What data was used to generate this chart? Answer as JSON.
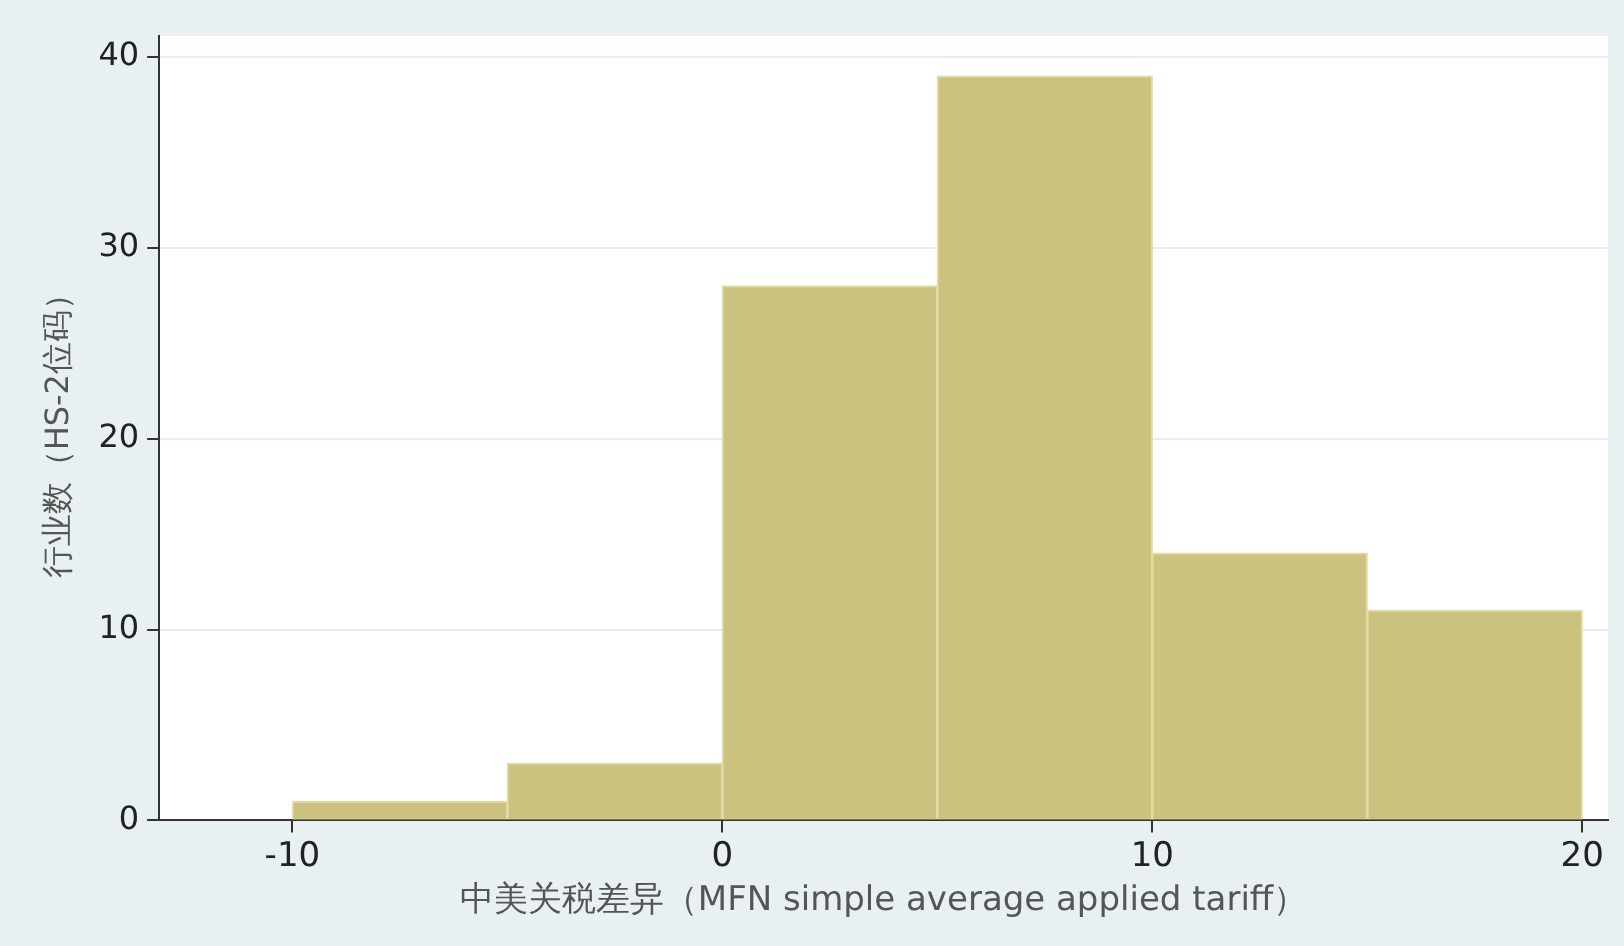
{
  "chart_data": {
    "type": "histogram",
    "xlabel": "中美关税差异（MFN simple average applied tariff）",
    "ylabel": "行业数（HS-2位码）",
    "bins": [
      -10,
      -5,
      0,
      5,
      10,
      15,
      20
    ],
    "values": [
      1,
      3,
      28,
      39,
      14,
      11
    ],
    "color": "#cbc27f",
    "xlim": [
      -13.1,
      20.6
    ],
    "xticks": [
      -10,
      0,
      10,
      20
    ],
    "ylim": [
      0,
      41.1
    ],
    "yticks": [
      0,
      10,
      20,
      30,
      40
    ],
    "grid": "y",
    "legend": false
  }
}
